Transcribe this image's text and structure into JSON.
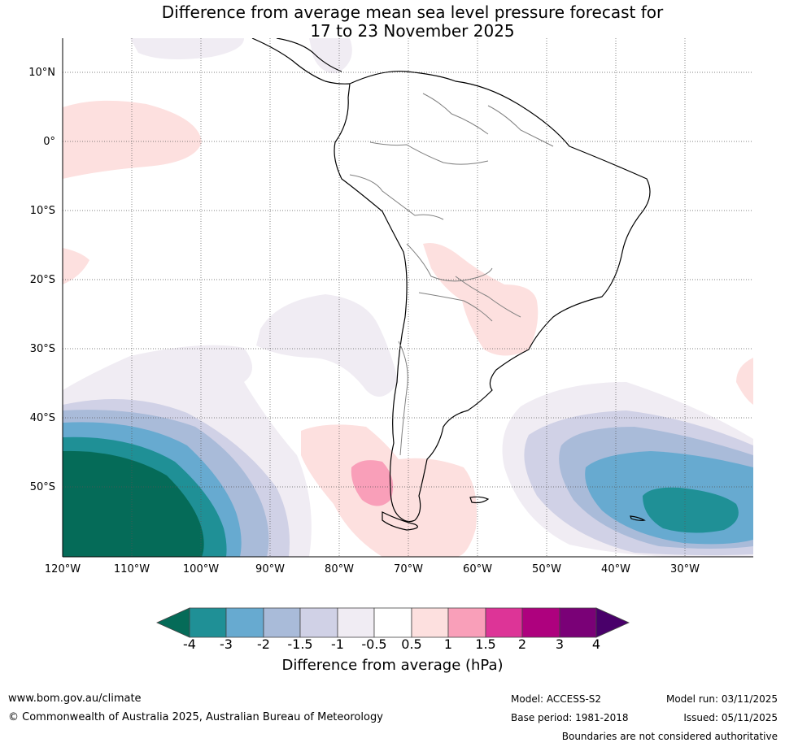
{
  "title": {
    "line1": "Difference from average mean sea level pressure forecast for",
    "line2": "17 to 23 November 2025"
  },
  "map": {
    "lat_labels": [
      "10°N",
      "0°",
      "10°S",
      "20°S",
      "30°S",
      "40°S",
      "50°S"
    ],
    "lon_labels": [
      "120°W",
      "110°W",
      "100°W",
      "90°W",
      "80°W",
      "70°W",
      "60°W",
      "50°W",
      "40°W",
      "30°W"
    ]
  },
  "colorbar": {
    "title": "Difference from average (hPa)",
    "ticks": [
      "-4",
      "-3",
      "-2",
      "-1.5",
      "-1",
      "-0.5",
      "0.5",
      "1",
      "1.5",
      "2",
      "3",
      "4"
    ],
    "colors": [
      "#056b58",
      "#1f9096",
      "#67aad0",
      "#a9bbd9",
      "#d0d1e6",
      "#f0ecf3",
      "#ffffff",
      "#fde0df",
      "#f99fb9",
      "#dd3497",
      "#ae017e",
      "#7a0177",
      "#49006a"
    ]
  },
  "footer": {
    "website": "www.bom.gov.au/climate",
    "copyright": "© Commonwealth of Australia 2025, Australian Bureau of Meteorology",
    "model": "Model: ACCESS-S2",
    "base_period": "Base period: 1981-2018",
    "model_run": "Model run: 03/11/2025",
    "issued": "Issued: 05/11/2025",
    "disclaimer": "Boundaries are not considered authoritative"
  }
}
